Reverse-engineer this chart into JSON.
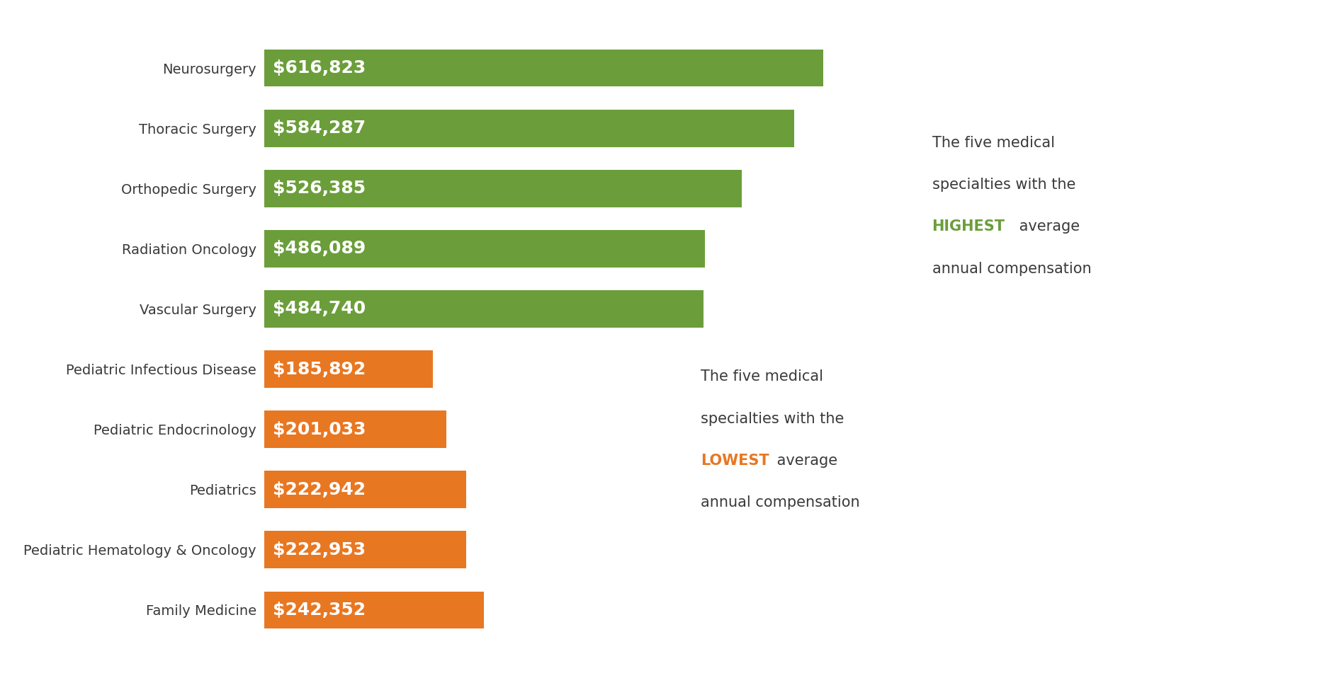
{
  "categories": [
    "Family Medicine",
    "Pediatric Hematology & Oncology",
    "Pediatrics",
    "Pediatric Endocrinology",
    "Pediatric Infectious Disease",
    "Vascular Surgery",
    "Radiation Oncology",
    "Orthopedic Surgery",
    "Thoracic Surgery",
    "Neurosurgery"
  ],
  "values": [
    242352,
    222953,
    222942,
    201033,
    185892,
    484740,
    486089,
    526385,
    584287,
    616823
  ],
  "labels": [
    "$242,352",
    "$222,953",
    "$222,942",
    "$201,033",
    "$185,892",
    "$484,740",
    "$486,089",
    "$526,385",
    "$584,287",
    "$616,823"
  ],
  "colors": [
    "#E87722",
    "#E87722",
    "#E87722",
    "#E87722",
    "#E87722",
    "#6B9E3A",
    "#6B9E3A",
    "#6B9E3A",
    "#6B9E3A",
    "#6B9E3A"
  ],
  "green_color": "#6B9E3A",
  "orange_color": "#E87722",
  "text_color_dark": "#3a3a3a",
  "text_color_white": "#FFFFFF",
  "background_color": "#FFFFFF",
  "xlim": [
    0,
    700000
  ],
  "bar_height": 0.62,
  "label_fontsize": 18,
  "ytick_fontsize": 14,
  "annotation_fontsize": 15
}
